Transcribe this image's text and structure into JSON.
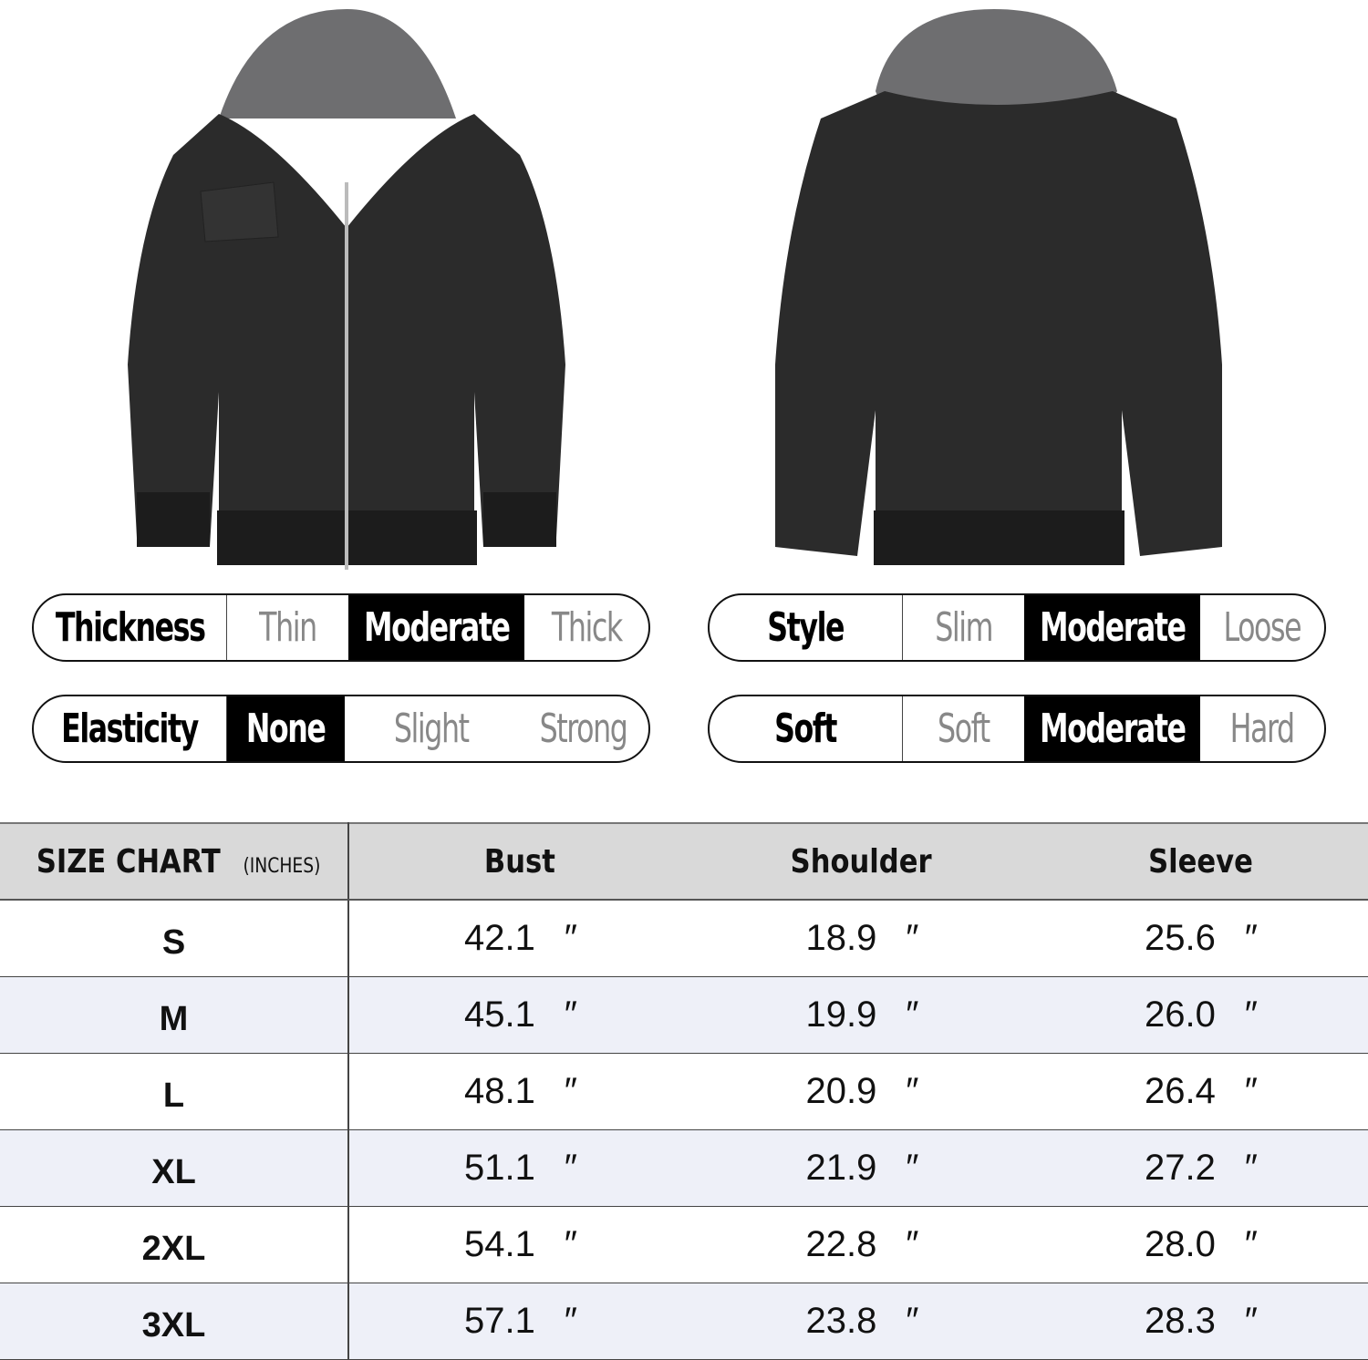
{
  "attributes_left": [
    {
      "label": "Thickness",
      "options": [
        "Thin",
        "Moderate",
        "Thick"
      ],
      "selected": "Moderate"
    },
    {
      "label": "Elasticity",
      "options": [
        "None",
        "Slight",
        "Strong"
      ],
      "selected": "None"
    }
  ],
  "attributes_right": [
    {
      "label": "Style",
      "options": [
        "Slim",
        "Moderate",
        "Loose"
      ],
      "selected": "Moderate"
    },
    {
      "label": "Soft",
      "options": [
        "Soft",
        "Moderate",
        "Hard"
      ],
      "selected": "Moderate"
    }
  ],
  "size_chart": {
    "title": "SIZE CHART",
    "unit": "(INCHES)",
    "columns": [
      "Bust",
      "Shoulder",
      "Sleeve"
    ],
    "inch_mark": "″",
    "rows": [
      {
        "size": "S",
        "values": [
          "42.1",
          "18.9",
          "25.6"
        ]
      },
      {
        "size": "M",
        "values": [
          "45.1",
          "19.9",
          "26.0"
        ]
      },
      {
        "size": "L",
        "values": [
          "48.1",
          "20.9",
          "26.4"
        ]
      },
      {
        "size": "XL",
        "values": [
          "51.1",
          "21.9",
          "27.2"
        ]
      },
      {
        "size": "2XL",
        "values": [
          "54.1",
          "22.8",
          "28.0"
        ]
      },
      {
        "size": "3XL",
        "values": [
          "57.1",
          "23.8",
          "28.3"
        ]
      }
    ]
  },
  "colors": {
    "jacket": "#2b2b2b",
    "hood": "#6e6e70",
    "header_bg": "#d9d9d9",
    "alt_row": "#eef0f8"
  }
}
